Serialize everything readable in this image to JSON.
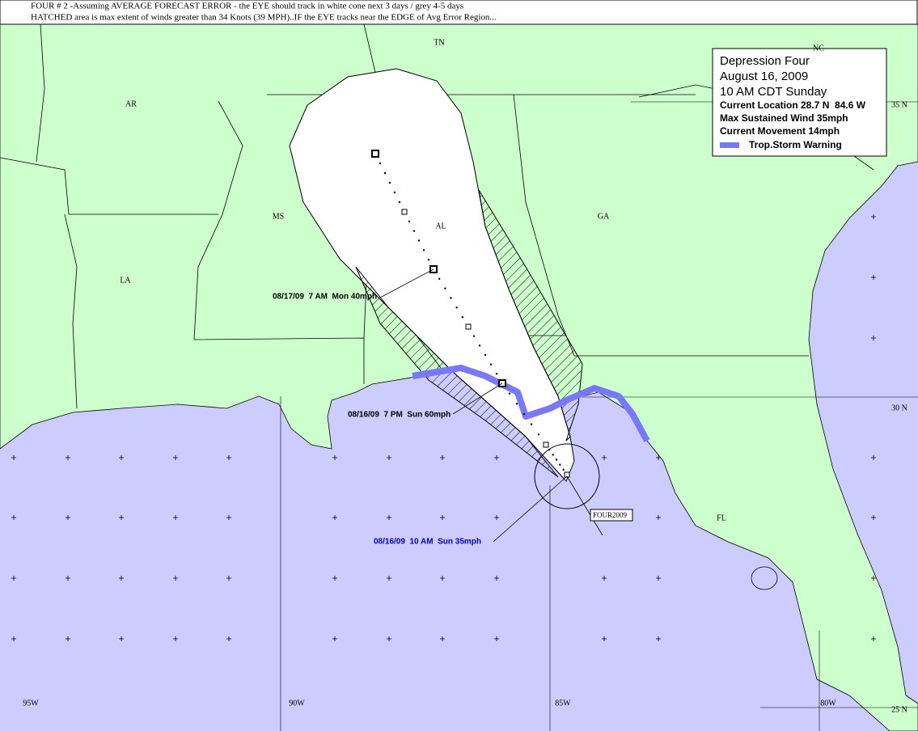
{
  "header": {
    "line1": "FOUR # 2 -Assuming AVERAGE FORECAST ERROR - the EYE should track in white cone next 3 days / grey 4-5 days",
    "line2": "HATCHED area is max extent of winds greater than 34 Knots (39 MPH)..IF the EYE tracks near the EDGE of Avg Error Region..."
  },
  "legend": {
    "title": "Depression Four",
    "date": "August 16, 2009",
    "time": "10 AM CDT Sunday",
    "location": "Current Location 28.7 N  84.6 W",
    "wind": "Max Sustained Wind 35mph",
    "movement": "Current Movement 14mph",
    "warning": "Trop.Storm Warning"
  },
  "states": [
    "TN",
    "NC",
    "AR",
    "MS",
    "AL",
    "GA",
    "LA",
    "FL"
  ],
  "latitude_labels": [
    "35 N",
    "30 N",
    "25 N"
  ],
  "longitude_labels": [
    "95W",
    "90W",
    "85W",
    "80W"
  ],
  "forecast_labels": [
    "08/17/09  7 AM  Mon 40mph",
    "08/16/09  7 PM  Sun 60mph",
    "08/16/09  10 AM  Sun 35mph"
  ],
  "storm_tag": "FOUR2009"
}
